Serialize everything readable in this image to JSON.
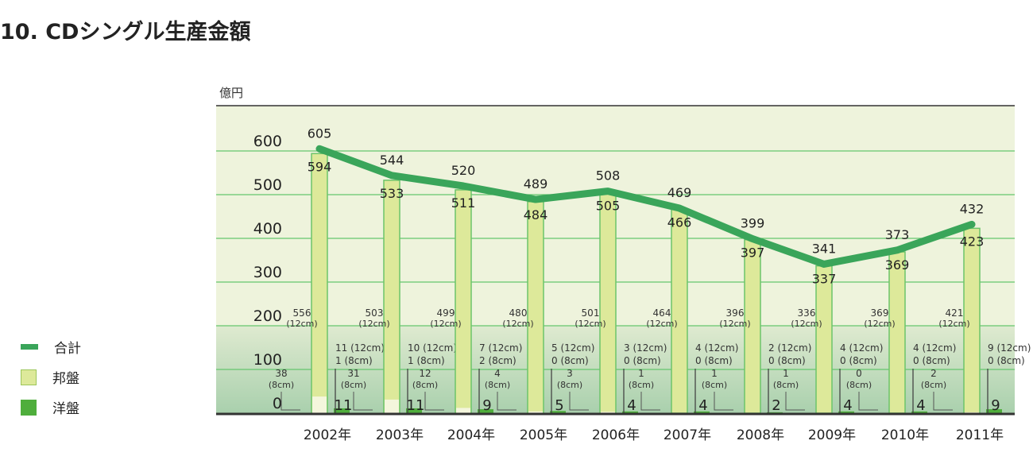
{
  "chart_data": {
    "type": "bar",
    "title": "10. CDシングル生産金額",
    "ylabel": "億円",
    "ylim": [
      0,
      700
    ],
    "yticks": [
      0,
      100,
      200,
      300,
      400,
      500,
      600
    ],
    "categories": [
      "2002年",
      "2003年",
      "2004年",
      "2005年",
      "2006年",
      "2007年",
      "2008年",
      "2009年",
      "2010年",
      "2011年"
    ],
    "series": [
      {
        "name": "合計",
        "kind": "line",
        "color": "#3aa55a",
        "values": [
          605,
          544,
          520,
          489,
          508,
          469,
          399,
          341,
          373,
          432
        ]
      },
      {
        "name": "邦盤",
        "kind": "bar",
        "color": "#dde99a",
        "values": [
          594,
          533,
          511,
          484,
          505,
          466,
          397,
          337,
          369,
          423
        ],
        "breakdown": {
          "12cm": [
            556,
            503,
            499,
            480,
            501,
            464,
            396,
            336,
            369,
            421
          ],
          "8cm": [
            38,
            31,
            12,
            4,
            3,
            1,
            1,
            1,
            0,
            2
          ]
        }
      },
      {
        "name": "洋盤",
        "kind": "bar",
        "color": "#4fae3c",
        "values": [
          11,
          11,
          9,
          5,
          4,
          4,
          2,
          4,
          4,
          9
        ],
        "breakdown": {
          "12cm": [
            11,
            10,
            7,
            5,
            3,
            4,
            2,
            4,
            4,
            9
          ],
          "8cm": [
            1,
            1,
            2,
            0,
            0,
            0,
            0,
            0,
            0,
            0
          ]
        }
      }
    ],
    "unit_labels": {
      "12cm": "(12cm)",
      "8cm": "(8cm)"
    },
    "legend_position": "left",
    "grid": true
  }
}
